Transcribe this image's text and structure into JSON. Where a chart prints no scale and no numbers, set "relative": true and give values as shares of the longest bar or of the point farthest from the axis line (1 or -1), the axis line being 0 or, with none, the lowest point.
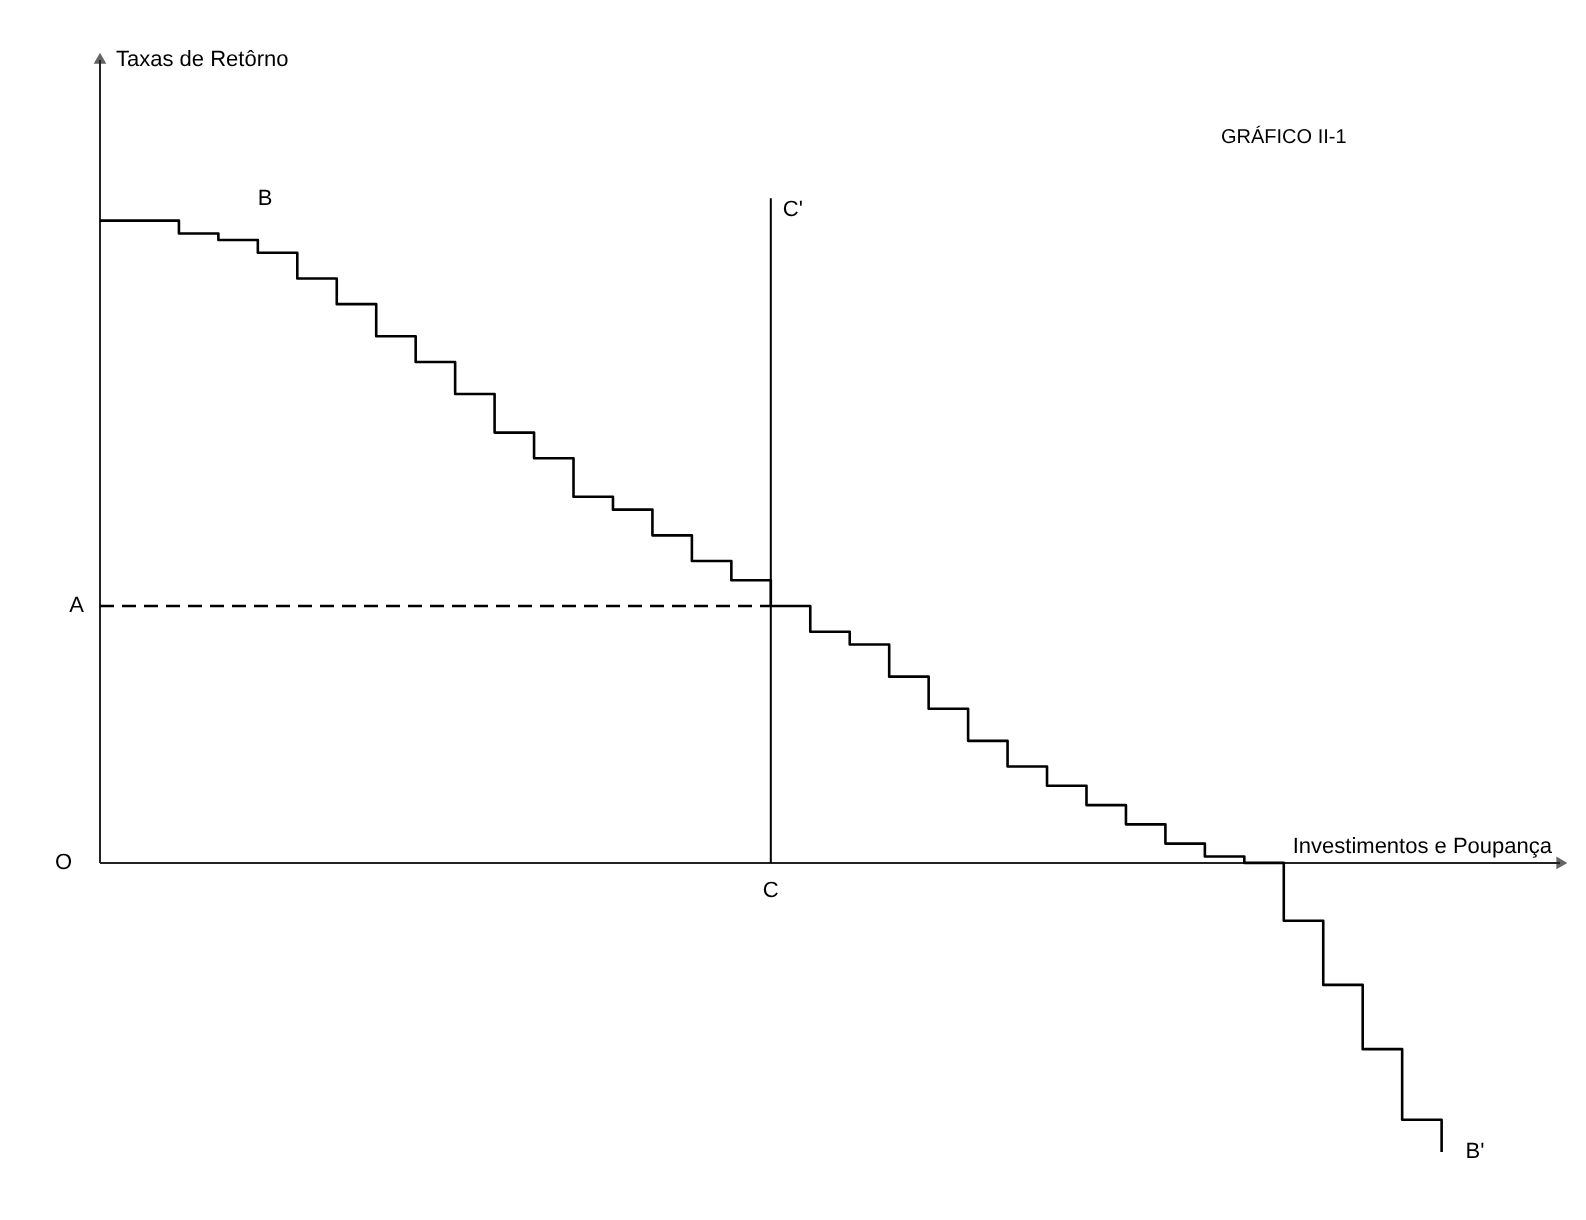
{
  "chart_data": {
    "type": "step",
    "relative": true,
    "title": "GRÁFICO II-1",
    "xlabel": "Investimentos e Poupança",
    "categories": [
      null,
      null,
      null,
      null,
      null,
      null,
      null,
      null,
      null,
      null,
      null,
      null,
      null,
      null,
      null,
      null,
      null,
      null,
      null,
      null,
      null,
      null,
      null,
      null,
      null,
      null,
      null,
      null,
      null,
      null,
      null,
      null,
      null,
      null,
      null
    ],
    "series": [
      {
        "color": "#000000",
        "values": [
          1.0,
          1.0,
          0.98,
          0.97,
          0.95,
          0.91,
          0.87,
          0.82,
          0.78,
          0.73,
          0.67,
          0.63,
          0.57,
          0.55,
          0.51,
          0.47,
          0.44,
          0.4,
          0.36,
          0.34,
          0.29,
          0.24,
          0.19,
          0.15,
          0.12,
          0.09,
          0.06,
          0.03,
          0.01,
          0.0,
          -0.09,
          -0.19,
          -0.29,
          -0.4,
          -0.45
        ]
      }
    ],
    "ref_lines": [
      {
        "axis": "y",
        "value": 0.4,
        "label": "A",
        "line_style": "dashed",
        "color": "#000000"
      }
    ],
    "annotations": [
      "B",
      "B'",
      "C'",
      "O",
      "C",
      "Taxas de Retôrno"
    ],
    "line_style": "solid",
    "marker": "none"
  }
}
